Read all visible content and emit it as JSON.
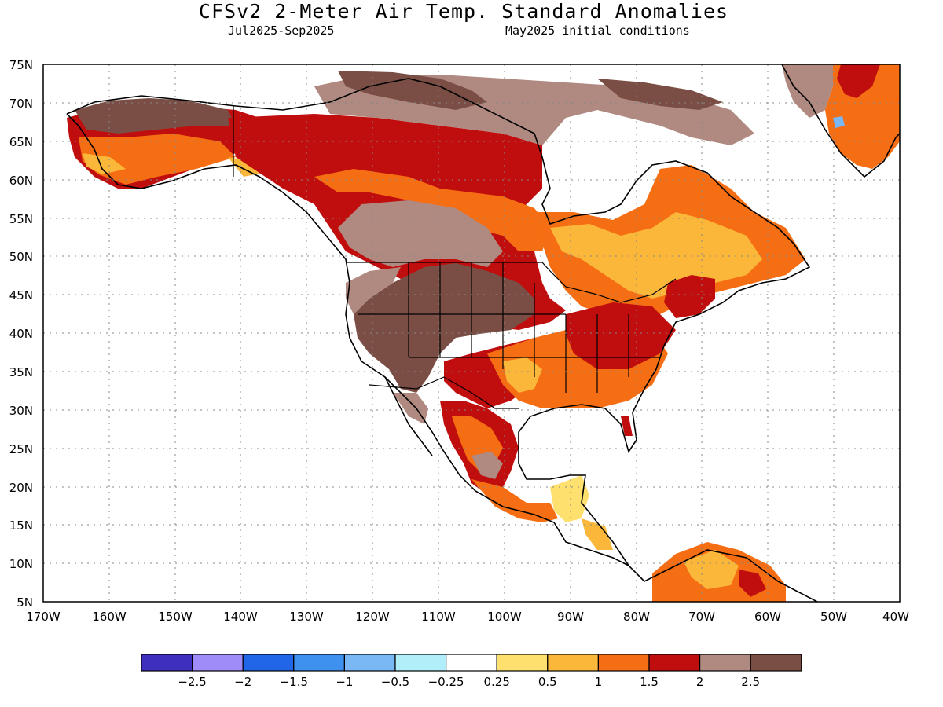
{
  "title": "CFSv2 2-Meter Air Temp. Standard Anomalies",
  "subtitle_left": "Jul2025-Sep2025",
  "subtitle_right": "May2025 initial conditions",
  "lat_labels": [
    "75N",
    "70N",
    "65N",
    "60N",
    "55N",
    "50N",
    "45N",
    "40N",
    "35N",
    "30N",
    "25N",
    "20N",
    "15N",
    "10N",
    "5N"
  ],
  "lon_labels": [
    "170W",
    "160W",
    "150W",
    "140W",
    "130W",
    "120W",
    "110W",
    "100W",
    "90W",
    "80W",
    "70W",
    "60W",
    "50W",
    "40W"
  ],
  "colorbar": {
    "colors": [
      "#3f2fbf",
      "#a08cf8",
      "#2166e6",
      "#3f91f0",
      "#7ab7f5",
      "#b0eefa",
      "#ffffff",
      "#fde06d",
      "#fbb73a",
      "#f56e13",
      "#c00d0d",
      "#b08980",
      "#7a4e44"
    ],
    "labels": [
      "-2.5",
      "-2",
      "-1.5",
      "-1",
      "-0.5",
      "-0.25",
      "0.25",
      "0.5",
      "1",
      "1.5",
      "2",
      "2.5"
    ]
  }
}
